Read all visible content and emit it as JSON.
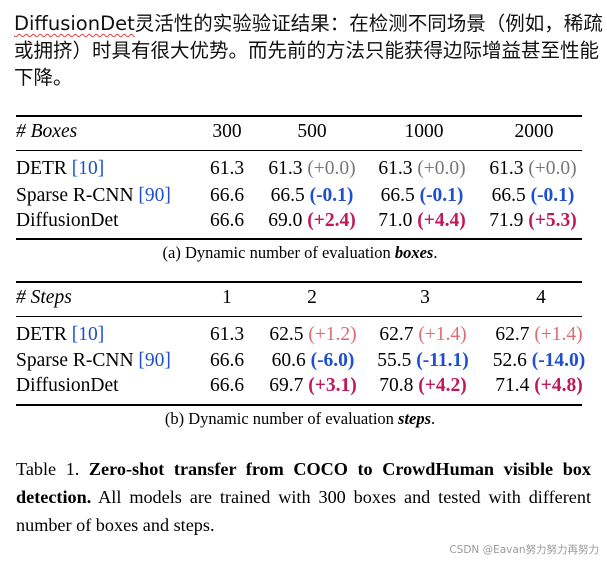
{
  "heading": {
    "lead": "DiffusionDet",
    "rest": "灵活性的实验验证结果：在检测不同场景（例如，稀疏或拥挤）时具有很大优势。而先前的方法只能获得边际增益甚至性能下降。"
  },
  "table_a": {
    "header_label": "# Boxes",
    "columns": [
      "300",
      "500",
      "1000",
      "2000"
    ],
    "rows": [
      {
        "name": "DETR",
        "ref": "[10]",
        "base": "61.3",
        "cells": [
          {
            "v": "61.3",
            "d": "(+0.0)"
          },
          {
            "v": "61.3",
            "d": "(+0.0)"
          },
          {
            "v": "61.3",
            "d": "(+0.0)"
          }
        ]
      },
      {
        "name": "Sparse R-CNN",
        "ref": "[90]",
        "base": "66.6",
        "cells": [
          {
            "v": "66.5",
            "d": "(-0.1)"
          },
          {
            "v": "66.5",
            "d": "(-0.1)"
          },
          {
            "v": "66.5",
            "d": "(-0.1)"
          }
        ]
      },
      {
        "name": "DiffusionDet",
        "ref": "",
        "base": "66.6",
        "cells": [
          {
            "v": "69.0",
            "d": "(+2.4)"
          },
          {
            "v": "71.0",
            "d": "(+4.4)"
          },
          {
            "v": "71.9",
            "d": "(+5.3)"
          }
        ]
      }
    ],
    "caption_prefix": "(a) Dynamic number of evaluation ",
    "caption_em": "boxes",
    "caption_suffix": "."
  },
  "table_b": {
    "header_label": "# Steps",
    "columns": [
      "1",
      "2",
      "3",
      "4"
    ],
    "rows": [
      {
        "name": "DETR",
        "ref": "[10]",
        "base": "61.3",
        "cells": [
          {
            "v": "62.5",
            "d": "(+1.2)"
          },
          {
            "v": "62.7",
            "d": "(+1.4)"
          },
          {
            "v": "62.7",
            "d": "(+1.4)"
          }
        ]
      },
      {
        "name": "Sparse R-CNN",
        "ref": "[90]",
        "base": "66.6",
        "cells": [
          {
            "v": "60.6",
            "d": "(-6.0)"
          },
          {
            "v": "55.5",
            "d": "(-11.1)"
          },
          {
            "v": "52.6",
            "d": "(-14.0)"
          }
        ]
      },
      {
        "name": "DiffusionDet",
        "ref": "",
        "base": "66.6",
        "cells": [
          {
            "v": "69.7",
            "d": "(+3.1)"
          },
          {
            "v": "70.8",
            "d": "(+4.2)"
          },
          {
            "v": "71.4",
            "d": "(+4.8)"
          }
        ]
      }
    ],
    "caption_prefix": "(b) Dynamic number of evaluation ",
    "caption_em": "steps",
    "caption_suffix": "."
  },
  "table_caption": {
    "label": "Table 1.",
    "bold": "Zero-shot transfer from COCO to CrowdHuman visible box detection.",
    "rest": "All models are trained with 300 boxes and tested with different number of boxes and steps."
  },
  "watermark": "CSDN @Eavan努力努力再努力",
  "colors": {
    "gray": "#777777",
    "blue": "#1f4fd1",
    "red": "#c0195a",
    "light_red": "#e06a70"
  }
}
